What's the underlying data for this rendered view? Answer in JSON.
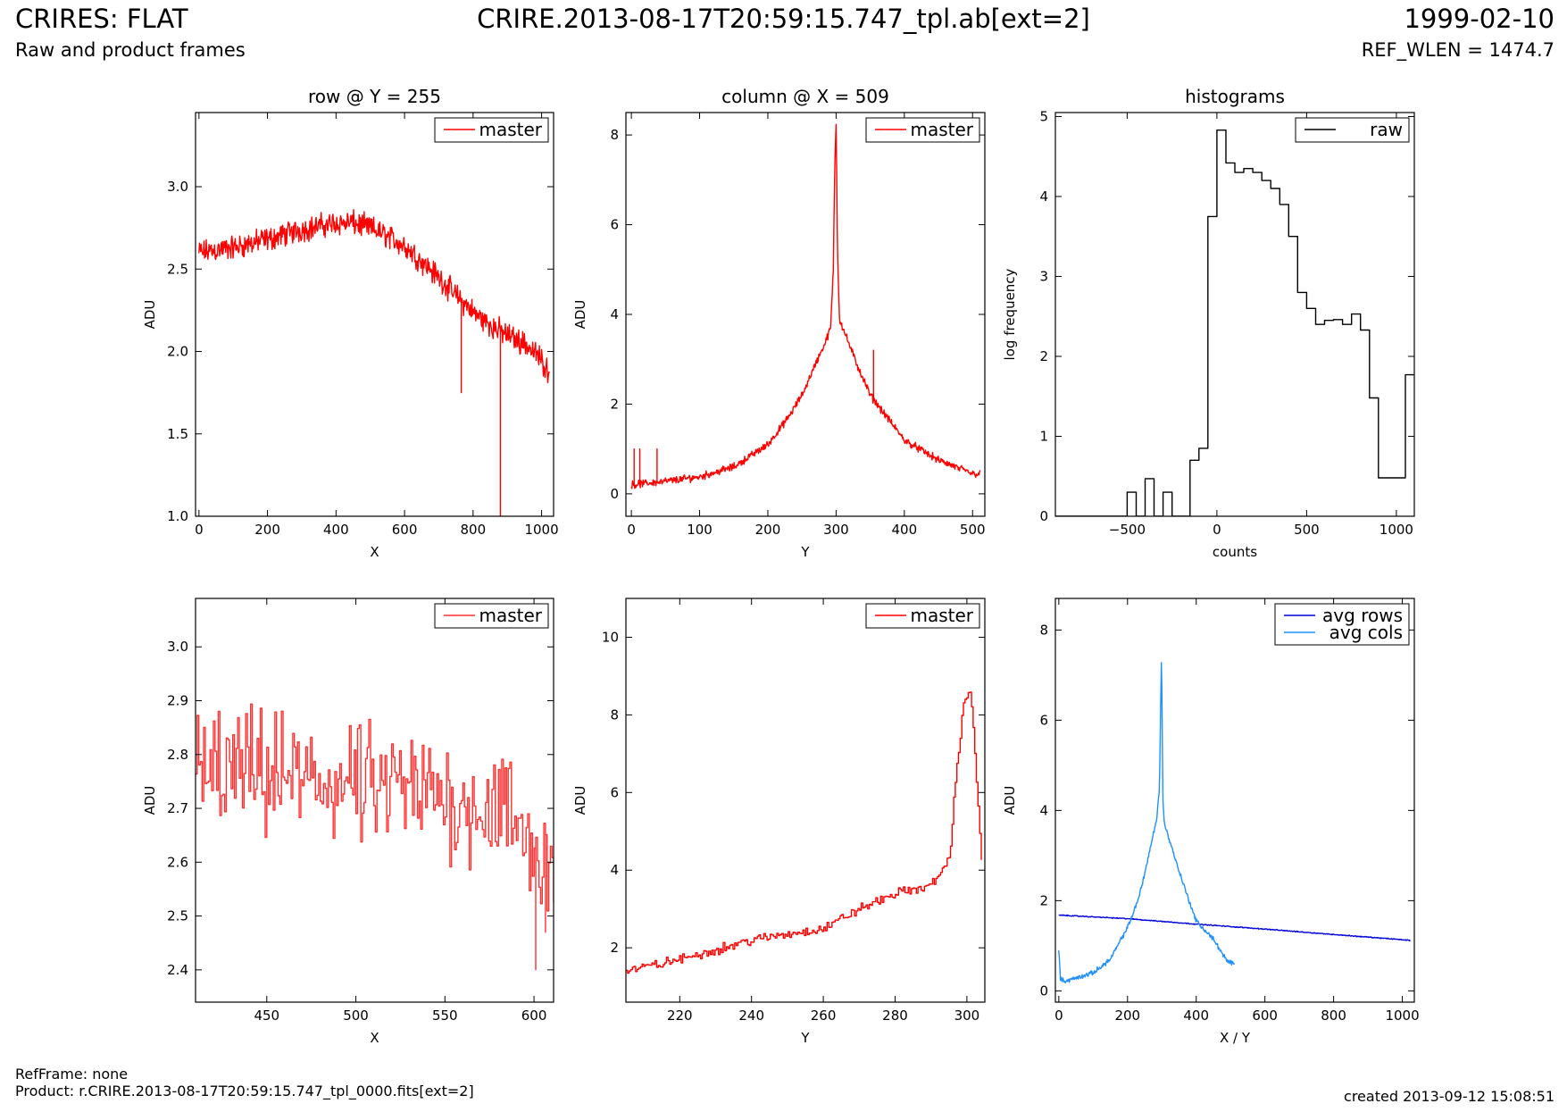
{
  "header": {
    "title": "CRIRES: FLAT",
    "subtitle": "Raw and product frames",
    "file": "CRIRE.2013-08-17T20:59:15.747_tpl.ab[ext=2]",
    "date": "1999-02-10",
    "ref_wlen": "REF_WLEN = 1474.7"
  },
  "footer": {
    "ref_frame": "RefFrame: none",
    "product": "Product: r.CRIRE.2013-08-17T20:59:15.747_tpl_0000.fits[ext=2]",
    "created": "created 2013-09-12 15:08:51"
  },
  "colors": {
    "red": "#ff0000",
    "red_light": "#ff3030",
    "black": "#000000",
    "blue": "#0000dd",
    "light_blue": "#1e90ff"
  },
  "chart_data": [
    {
      "type": "line",
      "title": "row @ Y = 255",
      "xlabel": "X",
      "ylabel": "ADU",
      "xlim": [
        -10,
        1035
      ],
      "ylim": [
        1.0,
        3.45
      ],
      "xticks": [
        0,
        200,
        400,
        600,
        800,
        1000
      ],
      "yticks": [
        1.0,
        1.5,
        2.0,
        2.5,
        3.0
      ],
      "legend": "top-right",
      "series": [
        {
          "name": "master",
          "color": "#ff0000",
          "style": "noisy",
          "x": [
            0,
            100,
            200,
            300,
            400,
            450,
            500,
            550,
            600,
            650,
            700,
            750,
            800,
            850,
            900,
            950,
            1000,
            1023
          ],
          "y": [
            2.6,
            2.63,
            2.68,
            2.74,
            2.78,
            2.78,
            2.75,
            2.7,
            2.64,
            2.55,
            2.45,
            2.34,
            2.24,
            2.16,
            2.1,
            2.05,
            1.95,
            1.87
          ],
          "noise": 0.07,
          "spikes": [
            [
              765,
              1.75
            ],
            [
              880,
              1.0
            ],
            [
              880,
              1.6
            ]
          ]
        }
      ]
    },
    {
      "type": "line",
      "title": "column @ X = 509",
      "xlabel": "Y",
      "ylabel": "ADU",
      "xlim": [
        -8,
        518
      ],
      "ylim": [
        -0.5,
        8.5
      ],
      "xticks": [
        0,
        100,
        200,
        300,
        400,
        500
      ],
      "yticks": [
        0,
        2,
        4,
        6,
        8
      ],
      "legend": "top-right",
      "series": [
        {
          "name": "master",
          "color": "#ff0000",
          "style": "noisy",
          "x": [
            0,
            50,
            100,
            150,
            200,
            230,
            250,
            270,
            285,
            292,
            296,
            298,
            300,
            302,
            305,
            315,
            330,
            350,
            400,
            450,
            500,
            511
          ],
          "y": [
            0.2,
            0.28,
            0.38,
            0.6,
            1.1,
            1.7,
            2.2,
            2.9,
            3.4,
            3.7,
            5.0,
            7.3,
            8.3,
            5.5,
            3.9,
            3.5,
            2.9,
            2.2,
            1.2,
            0.75,
            0.45,
            0.45
          ],
          "noise": 0.08,
          "spikes": [
            [
              4,
              1.0
            ],
            [
              12,
              1.0
            ],
            [
              38,
              1.0
            ],
            [
              355,
              3.2
            ]
          ]
        }
      ]
    },
    {
      "type": "line",
      "title": "histograms",
      "xlabel": "counts",
      "ylabel": "log frequency",
      "xlim": [
        -900,
        1100
      ],
      "ylim": [
        0,
        5.05
      ],
      "xticks": [
        -500,
        0,
        500,
        1000
      ],
      "yticks": [
        0,
        1,
        2,
        3,
        4,
        5
      ],
      "legend": "top-right",
      "series": [
        {
          "name": "raw",
          "color": "#000000",
          "style": "step",
          "x": [
            -900,
            -500,
            -450,
            -400,
            -350,
            -300,
            -250,
            -200,
            -150,
            -100,
            -50,
            0,
            50,
            100,
            150,
            200,
            250,
            300,
            350,
            400,
            450,
            500,
            550,
            600,
            650,
            700,
            750,
            800,
            850,
            900,
            1050,
            1100
          ],
          "y": [
            0,
            0.3,
            0,
            0.47,
            0,
            0.3,
            0,
            0,
            0.7,
            0.85,
            3.75,
            4.83,
            4.42,
            4.3,
            4.35,
            4.3,
            4.2,
            4.1,
            3.9,
            3.5,
            2.8,
            2.6,
            2.4,
            2.45,
            2.46,
            2.4,
            2.53,
            2.33,
            1.48,
            0.48,
            1.77,
            1.77
          ]
        }
      ]
    },
    {
      "type": "line",
      "title": "",
      "xlabel": "X",
      "ylabel": "ADU",
      "xlim": [
        410,
        611
      ],
      "ylim": [
        2.34,
        3.09
      ],
      "xticks": [
        450,
        500,
        550,
        600
      ],
      "yticks": [
        2.4,
        2.5,
        2.6,
        2.7,
        2.8,
        2.9,
        3.0
      ],
      "legend": "top-right",
      "series": [
        {
          "name": "master",
          "color": "#ff3030",
          "style": "step-noisy",
          "x": [
            410,
            450,
            500,
            550,
            580,
            600,
            611
          ],
          "y": [
            2.77,
            2.76,
            2.74,
            2.72,
            2.7,
            2.62,
            2.6
          ],
          "noise": 0.11,
          "spikes": [
            [
              601,
              2.4
            ],
            [
              606,
              2.47
            ]
          ]
        }
      ]
    },
    {
      "type": "line",
      "title": "",
      "xlabel": "Y",
      "ylabel": "ADU",
      "xlim": [
        205,
        305
      ],
      "ylim": [
        0.6,
        11.0
      ],
      "xticks": [
        220,
        240,
        260,
        280,
        300
      ],
      "yticks": [
        2,
        4,
        6,
        8,
        10
      ],
      "legend": "top-right",
      "series": [
        {
          "name": "master",
          "color": "#ff0000",
          "style": "step-noisy",
          "x": [
            205,
            220,
            240,
            260,
            270,
            280,
            290,
            295,
            297,
            299,
            301,
            302,
            303,
            304
          ],
          "y": [
            1.4,
            1.7,
            2.2,
            2.5,
            3.0,
            3.4,
            3.6,
            4.3,
            6.5,
            8.3,
            8.7,
            7.2,
            5.7,
            4.3
          ],
          "noise": 0.12
        }
      ]
    },
    {
      "type": "line",
      "title": "",
      "xlabel": "X / Y",
      "ylabel": "ADU",
      "xlim": [
        -10,
        1035
      ],
      "ylim": [
        -0.25,
        8.7
      ],
      "xticks": [
        0,
        200,
        400,
        600,
        800,
        1000
      ],
      "yticks": [
        0,
        2,
        4,
        6,
        8
      ],
      "legend": "top-right",
      "series": [
        {
          "name": "avg rows",
          "color": "#0000dd",
          "style": "noisy",
          "x": [
            0,
            200,
            400,
            600,
            800,
            1023
          ],
          "y": [
            1.68,
            1.6,
            1.48,
            1.37,
            1.25,
            1.12
          ],
          "noise": 0.01
        },
        {
          "name": "avg cols",
          "color": "#1e90ff",
          "style": "noisy",
          "x": [
            0,
            5,
            20,
            50,
            100,
            150,
            200,
            230,
            250,
            270,
            285,
            293,
            297,
            299,
            301,
            303,
            307,
            320,
            340,
            370,
            400,
            430,
            450,
            470,
            490,
            511
          ],
          "y": [
            0.9,
            0.25,
            0.22,
            0.28,
            0.4,
            0.7,
            1.4,
            2.0,
            2.6,
            3.3,
            3.8,
            4.5,
            6.5,
            7.6,
            5.8,
            4.3,
            3.7,
            3.4,
            2.9,
            2.2,
            1.55,
            1.3,
            1.15,
            0.9,
            0.65,
            0.6
          ],
          "noise": 0.05
        }
      ]
    }
  ]
}
